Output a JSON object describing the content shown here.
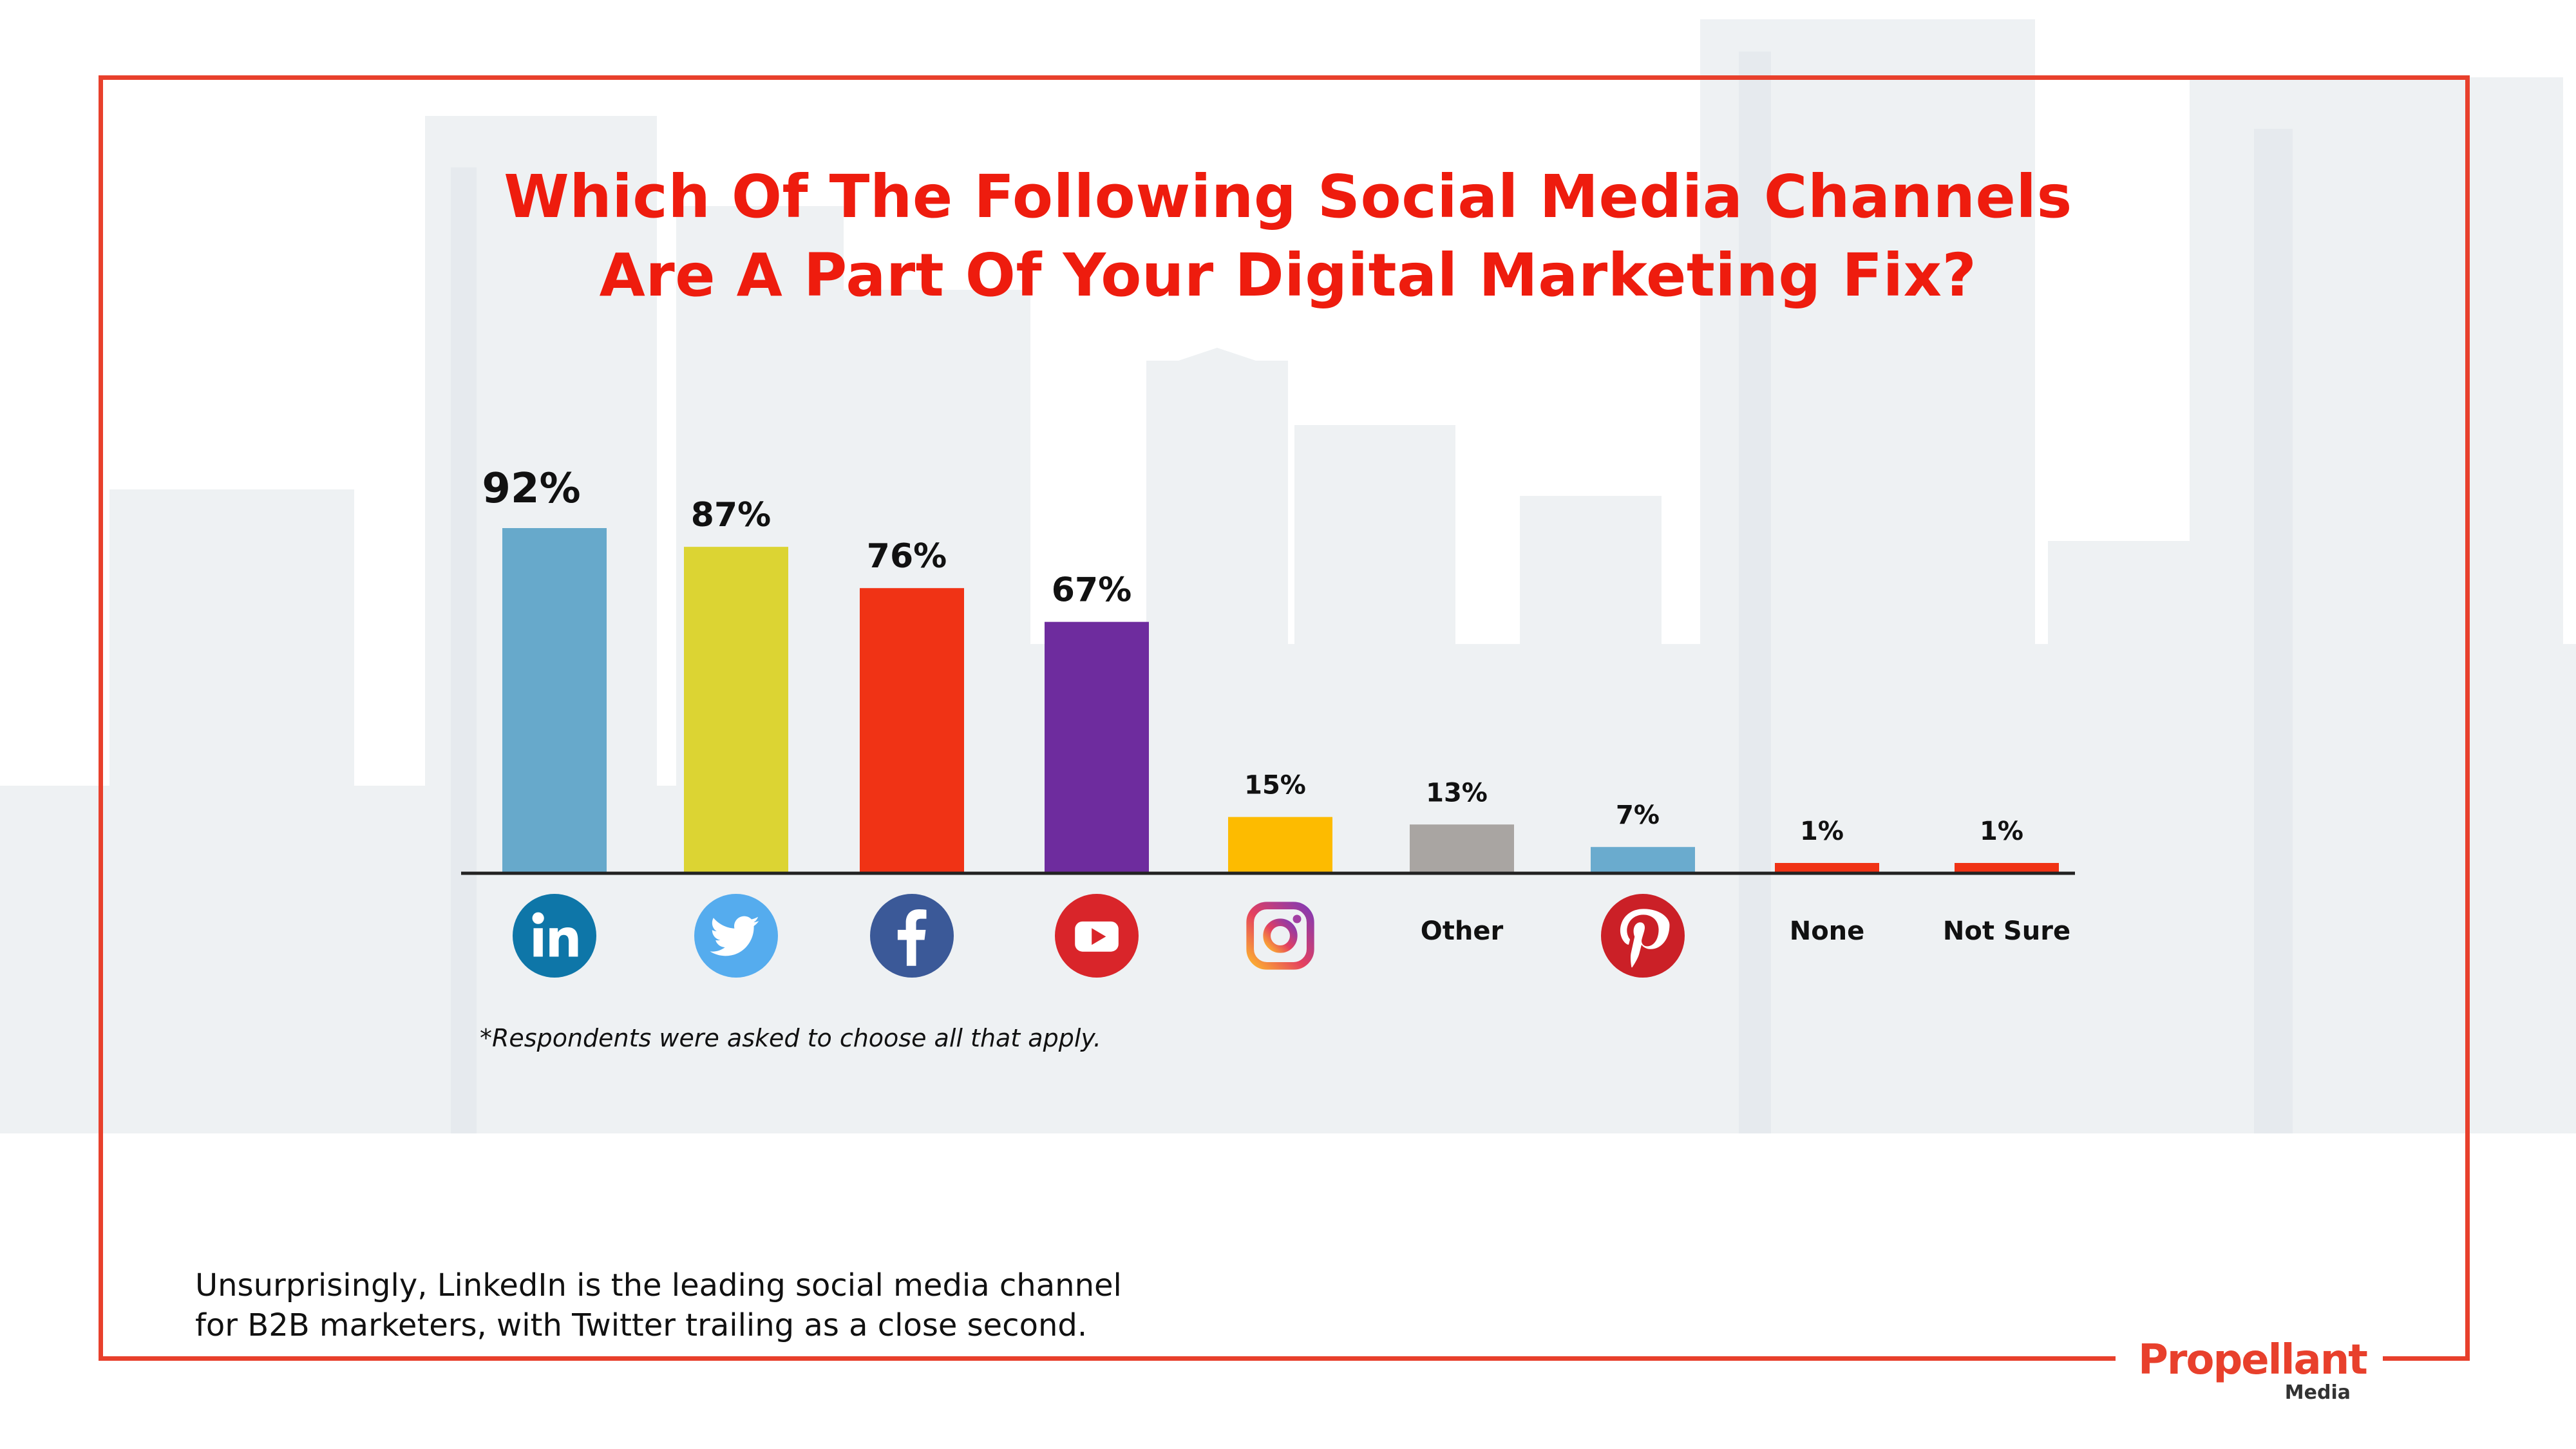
{
  "title": {
    "line1": "Which Of The Following Social Media Channels",
    "line2": "Are A Part Of Your Digital Marketing Fix?"
  },
  "chart_data": {
    "type": "bar",
    "title": "Which Of The Following Social Media Channels Are A Part Of Your Digital Marketing Fix?",
    "categories": [
      "LinkedIn",
      "Twitter",
      "Facebook",
      "YouTube",
      "Instagram",
      "Other",
      "Pinterest",
      "None",
      "Not Sure"
    ],
    "values": [
      92,
      87,
      76,
      67,
      15,
      13,
      7,
      1,
      1
    ],
    "value_labels": [
      "92%",
      "87%",
      "76%",
      "67%",
      "15%",
      "13%",
      "7%",
      "1%",
      "1%"
    ],
    "category_display": [
      {
        "kind": "icon",
        "icon": "linkedin-icon"
      },
      {
        "kind": "icon",
        "icon": "twitter-icon"
      },
      {
        "kind": "icon",
        "icon": "facebook-icon"
      },
      {
        "kind": "icon",
        "icon": "youtube-icon"
      },
      {
        "kind": "icon",
        "icon": "instagram-icon"
      },
      {
        "kind": "text",
        "text": "Other"
      },
      {
        "kind": "icon",
        "icon": "pinterest-icon"
      },
      {
        "kind": "text",
        "text": "None"
      },
      {
        "kind": "text",
        "text": "Not Sure"
      }
    ],
    "colors": [
      "#67a9cb",
      "#dcd433",
      "#f03315",
      "#6e2c9e",
      "#fdbb00",
      "#a9a5a2",
      "#6aabce",
      "#f03315",
      "#f03315"
    ],
    "ylim": [
      0,
      100
    ],
    "xlabel": "",
    "ylabel": "",
    "grid": false,
    "legend": "none"
  },
  "footnote": "*Respondents were asked to choose all that apply.",
  "summary": {
    "line1": "Unsurprisingly, LinkedIn is the leading social media channel",
    "line2": "for B2B marketers, with Twitter trailing as a close second."
  },
  "logo": {
    "name": "Propellant",
    "sub": "Media"
  },
  "colors": {
    "accent": "#e8402c",
    "title": "#ee1c0e"
  }
}
